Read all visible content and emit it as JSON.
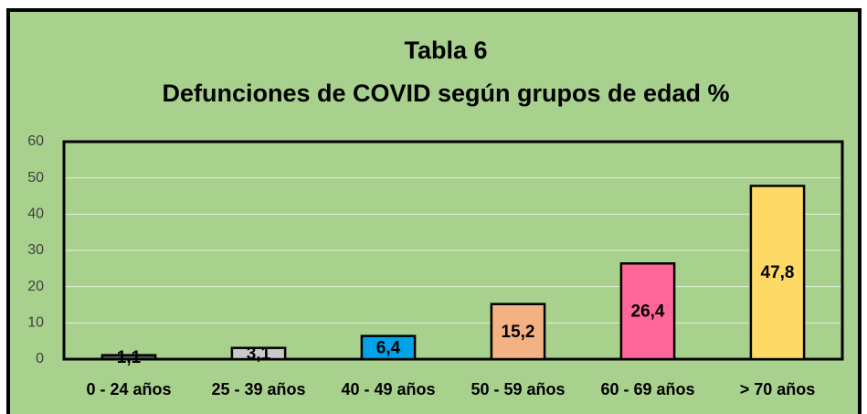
{
  "chart_data": {
    "type": "bar",
    "title": "Tabla 6",
    "subtitle": "Defunciones de COVID según grupos de edad %",
    "categories": [
      "0 - 24 años",
      "25 - 39 años",
      "40 - 49 años",
      "50 - 59 años",
      "60 - 69 años",
      "> 70 años"
    ],
    "values": [
      1.1,
      3.1,
      6.4,
      15.2,
      26.4,
      47.8
    ],
    "value_labels": [
      "1,1",
      "3,1",
      "6,4",
      "15,2",
      "26,4",
      "47,8"
    ],
    "colors": [
      "#595959",
      "#c9c9c9",
      "#00a2e8",
      "#f4b183",
      "#ff6699",
      "#ffd966"
    ],
    "ylim": [
      0,
      60
    ],
    "yticks": [
      0,
      10,
      20,
      30,
      40,
      50,
      60
    ],
    "grid": true
  }
}
